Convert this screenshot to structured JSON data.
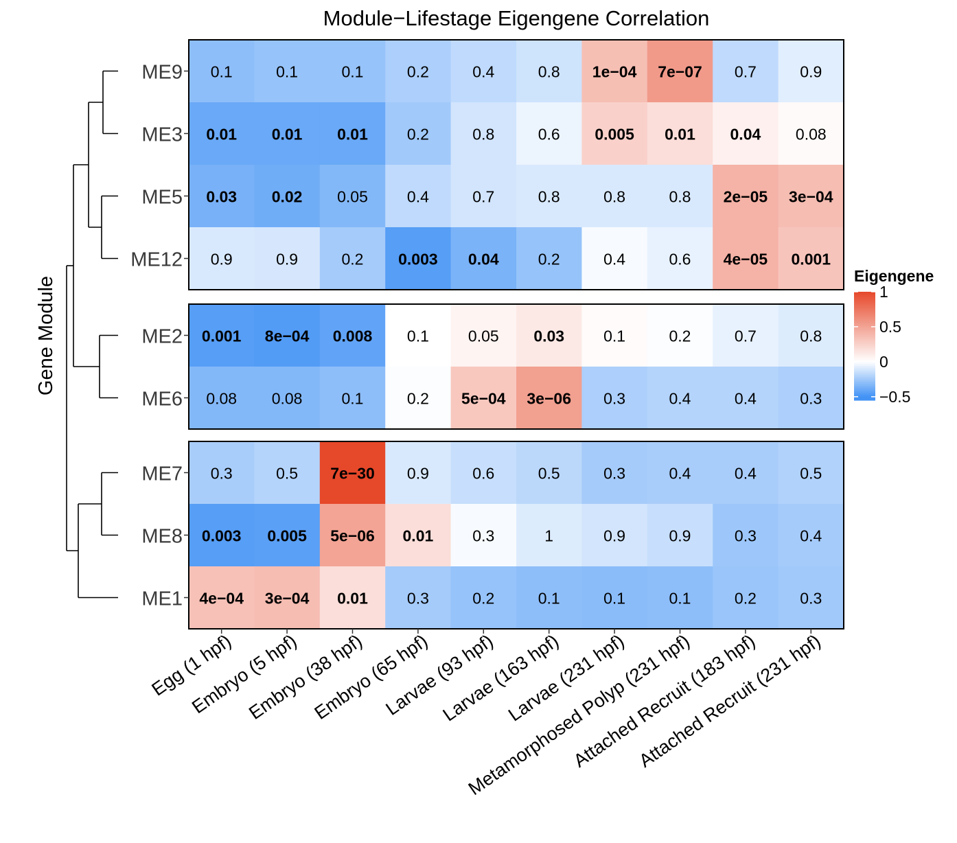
{
  "chart_data": {
    "type": "heatmap",
    "title": "Module−Lifestage Eigengene Correlation",
    "ylabel": "Gene Module",
    "xlabel": "",
    "columns": [
      "Egg (1 hpf)",
      "Embryo (5 hpf)",
      "Embryo (38 hpf)",
      "Embryo (65 hpf)",
      "Larvae (93 hpf)",
      "Larvae (163 hpf)",
      "Larvae (231 hpf)",
      "Metamorphosed Polyp (231 hpf)",
      "Attached Recruit (183 hpf)",
      "Attached Recruit (231 hpf)"
    ],
    "row_groups": [
      {
        "rows": [
          "ME9",
          "ME3",
          "ME5",
          "ME12"
        ]
      },
      {
        "rows": [
          "ME2",
          "ME6"
        ]
      },
      {
        "rows": [
          "ME7",
          "ME8",
          "ME1"
        ]
      }
    ],
    "rows": [
      {
        "module": "ME9",
        "labels": [
          "0.1",
          "0.1",
          "0.1",
          "0.2",
          "0.4",
          "0.8",
          "1e−04",
          "7e−07",
          "0.7",
          "0.9"
        ],
        "eigengene": [
          -0.3,
          -0.28,
          -0.28,
          -0.22,
          -0.17,
          -0.13,
          0.35,
          0.55,
          -0.17,
          -0.08
        ],
        "bold": [
          false,
          false,
          false,
          false,
          false,
          false,
          true,
          true,
          false,
          false
        ]
      },
      {
        "module": "ME3",
        "labels": [
          "0.01",
          "0.01",
          "0.01",
          "0.2",
          "0.8",
          "0.6",
          "0.005",
          "0.01",
          "0.04",
          "0.08"
        ],
        "eigengene": [
          -0.4,
          -0.4,
          -0.4,
          -0.25,
          -0.12,
          -0.05,
          0.25,
          0.18,
          0.08,
          0.03
        ],
        "bold": [
          true,
          true,
          true,
          false,
          false,
          false,
          true,
          true,
          true,
          false
        ]
      },
      {
        "module": "ME5",
        "labels": [
          "0.03",
          "0.02",
          "0.05",
          "0.4",
          "0.7",
          "0.8",
          "0.8",
          "0.8",
          "2e−05",
          "3e−04"
        ],
        "eigengene": [
          -0.36,
          -0.38,
          -0.33,
          -0.17,
          -0.12,
          -0.1,
          -0.1,
          -0.1,
          0.42,
          0.36
        ],
        "bold": [
          true,
          true,
          false,
          false,
          false,
          false,
          false,
          false,
          true,
          true
        ]
      },
      {
        "module": "ME12",
        "labels": [
          "0.9",
          "0.9",
          "0.2",
          "0.003",
          "0.04",
          "0.2",
          "0.4",
          "0.6",
          "4e−05",
          "0.001"
        ],
        "eigengene": [
          -0.1,
          -0.11,
          -0.24,
          -0.45,
          -0.35,
          -0.28,
          -0.02,
          -0.06,
          0.42,
          0.32
        ],
        "bold": [
          false,
          false,
          false,
          true,
          true,
          false,
          false,
          false,
          true,
          true
        ]
      },
      {
        "module": "ME2",
        "labels": [
          "0.001",
          "8e−04",
          "0.008",
          "0.1",
          "0.05",
          "0.03",
          "0.1",
          "0.2",
          "0.7",
          "0.8"
        ],
        "eigengene": [
          -0.45,
          -0.46,
          -0.42,
          0.0,
          0.06,
          0.12,
          0.02,
          -0.01,
          -0.06,
          -0.09
        ],
        "bold": [
          true,
          true,
          true,
          false,
          false,
          true,
          false,
          false,
          false,
          false
        ]
      },
      {
        "module": "ME6",
        "labels": [
          "0.08",
          "0.08",
          "0.1",
          "0.2",
          "5e−04",
          "3e−06",
          "0.3",
          "0.4",
          "0.4",
          "0.3"
        ],
        "eigengene": [
          -0.33,
          -0.33,
          -0.3,
          -0.01,
          0.3,
          0.52,
          -0.22,
          -0.2,
          -0.2,
          -0.22
        ],
        "bold": [
          false,
          false,
          false,
          false,
          true,
          true,
          false,
          false,
          false,
          false
        ]
      },
      {
        "module": "ME7",
        "labels": [
          "0.3",
          "0.5",
          "7e−30",
          "0.9",
          "0.6",
          "0.5",
          "0.3",
          "0.4",
          "0.4",
          "0.5"
        ],
        "eigengene": [
          -0.23,
          -0.2,
          1.0,
          -0.1,
          -0.15,
          -0.18,
          -0.24,
          -0.23,
          -0.23,
          -0.21
        ],
        "bold": [
          false,
          false,
          true,
          false,
          false,
          false,
          false,
          false,
          false,
          false
        ]
      },
      {
        "module": "ME8",
        "labels": [
          "0.003",
          "0.005",
          "5e−06",
          "0.01",
          "0.3",
          "1",
          "0.9",
          "0.9",
          "0.3",
          "0.4"
        ],
        "eigengene": [
          -0.45,
          -0.44,
          0.5,
          0.18,
          -0.02,
          -0.09,
          -0.12,
          -0.15,
          -0.26,
          -0.24
        ],
        "bold": [
          true,
          true,
          true,
          true,
          false,
          false,
          false,
          false,
          false,
          false
        ]
      },
      {
        "module": "ME1",
        "labels": [
          "4e−04",
          "3e−04",
          "0.01",
          "0.3",
          "0.2",
          "0.1",
          "0.1",
          "0.1",
          "0.2",
          "0.3"
        ],
        "eigengene": [
          0.34,
          0.36,
          0.18,
          -0.24,
          -0.28,
          -0.3,
          -0.31,
          -0.3,
          -0.27,
          -0.25
        ],
        "bold": [
          true,
          true,
          true,
          false,
          false,
          false,
          false,
          false,
          false,
          false
        ]
      }
    ],
    "legend": {
      "title": "Eigengene",
      "ticks": [
        "1",
        "0.5",
        "0",
        "−0.5"
      ],
      "tick_values": [
        1,
        0.5,
        0,
        -0.5
      ],
      "range": [
        -0.55,
        1.0
      ],
      "placement": "right",
      "colors": {
        "low": "#4393f5",
        "mid": "#ffffff",
        "high": "#e6482a"
      }
    },
    "dendrogram_leaf_order": [
      "ME9",
      "ME3",
      "ME5",
      "ME12",
      "ME2",
      "ME6",
      "ME7",
      "ME8",
      "ME1"
    ]
  }
}
